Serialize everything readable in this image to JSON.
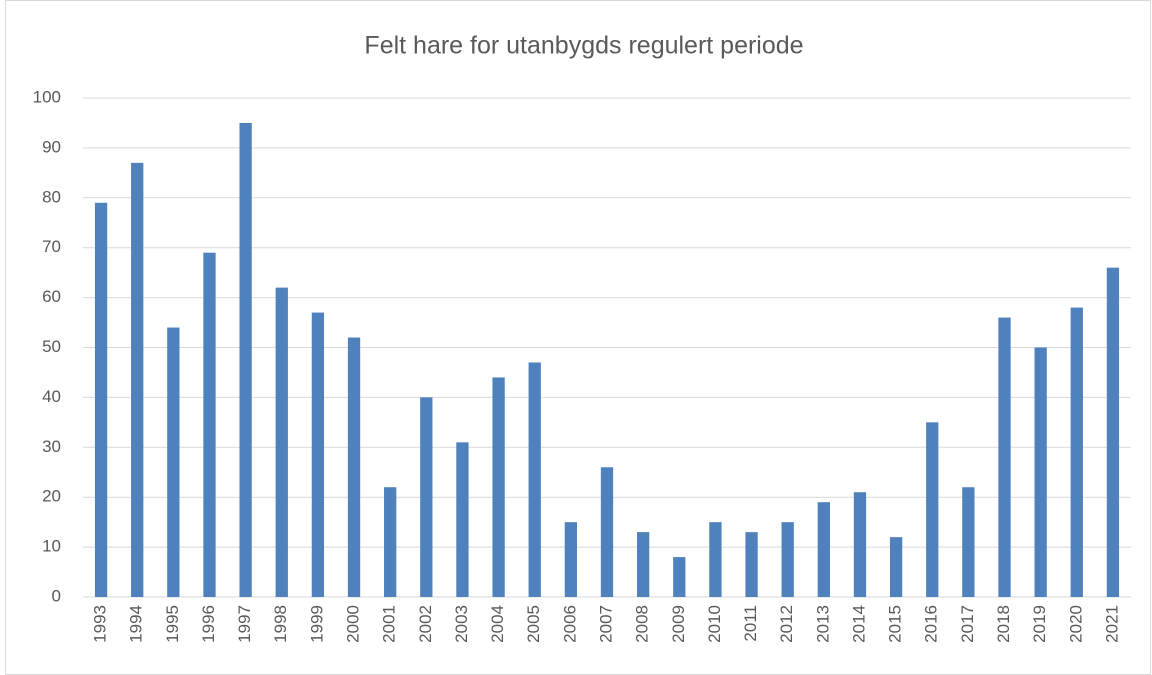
{
  "chart_data": {
    "type": "bar",
    "title": "Felt hare for utanbygds regulert periode",
    "categories": [
      "1993",
      "1994",
      "1995",
      "1996",
      "1997",
      "1998",
      "1999",
      "2000",
      "2001",
      "2002",
      "2003",
      "2004",
      "2005",
      "2006",
      "2007",
      "2008",
      "2009",
      "2010",
      "2011",
      "2012",
      "2013",
      "2014",
      "2015",
      "2016",
      "2017",
      "2018",
      "2019",
      "2020",
      "2021"
    ],
    "values": [
      79,
      87,
      54,
      69,
      95,
      62,
      57,
      52,
      22,
      40,
      31,
      44,
      47,
      15,
      26,
      13,
      8,
      15,
      13,
      15,
      19,
      21,
      12,
      35,
      22,
      56,
      50,
      58,
      66
    ],
    "color": "#4f81bd",
    "ylim": [
      0,
      100
    ],
    "yticks": [
      0,
      10,
      20,
      30,
      40,
      50,
      60,
      70,
      80,
      90,
      100
    ],
    "grid": true
  }
}
